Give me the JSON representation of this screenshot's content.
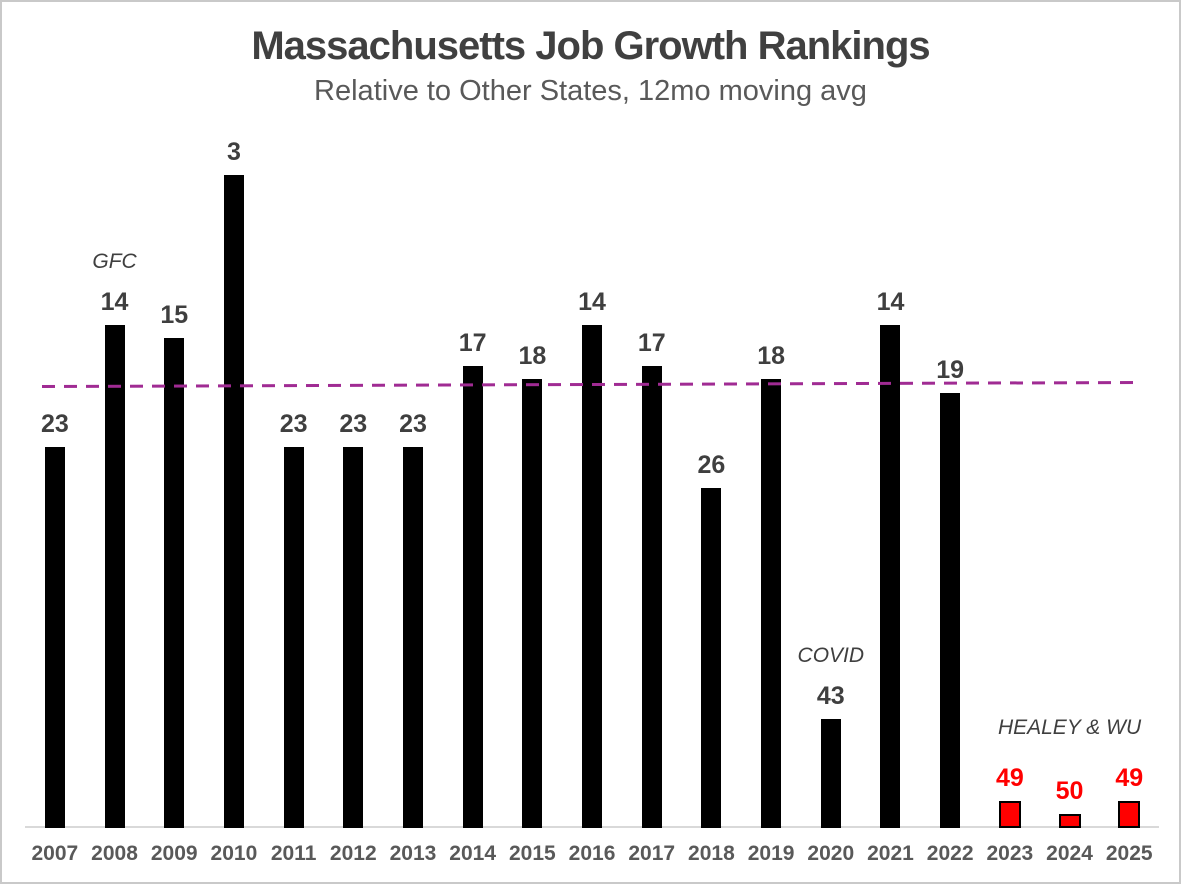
{
  "colors": {
    "bar": "#000000",
    "highlight_bar": "#ff0000",
    "highlight_bar_border": "#000000",
    "value_label": "#3f3f3f",
    "highlight_value_label": "#ff0000",
    "axis_tick_label": "#595959",
    "title": "#404040",
    "subtitle": "#595959",
    "trendline": "#a02b93",
    "axis_line": "#d9d9d9"
  },
  "chart_data": {
    "type": "bar",
    "title": "Massachusetts Job Growth Rankings",
    "subtitle": "Relative to Other States, 12mo moving avg",
    "categories": [
      "2007",
      "2008",
      "2009",
      "2010",
      "2011",
      "2012",
      "2013",
      "2014",
      "2015",
      "2016",
      "2017",
      "2018",
      "2019",
      "2020",
      "2021",
      "2022",
      "2023",
      "2024",
      "2025"
    ],
    "values": [
      23,
      14,
      15,
      3,
      23,
      23,
      23,
      17,
      18,
      14,
      17,
      26,
      18,
      43,
      14,
      19,
      49,
      50,
      49
    ],
    "value_meaning": "state rank (1 = best); bars drawn inverted so taller bar = better rank",
    "baseline_rank": 51,
    "ylim": [
      51,
      0
    ],
    "grid": false,
    "legend": false,
    "highlighted_categories": [
      "2023",
      "2024",
      "2025"
    ],
    "annotations": [
      {
        "text": "GFC",
        "year": "2008"
      },
      {
        "text": "COVID",
        "year": "2020"
      },
      {
        "text": "HEALEY & WU",
        "year": "2024"
      }
    ],
    "trendline": {
      "style": "dashed",
      "color": "#a02b93",
      "rank": 18.5
    }
  }
}
